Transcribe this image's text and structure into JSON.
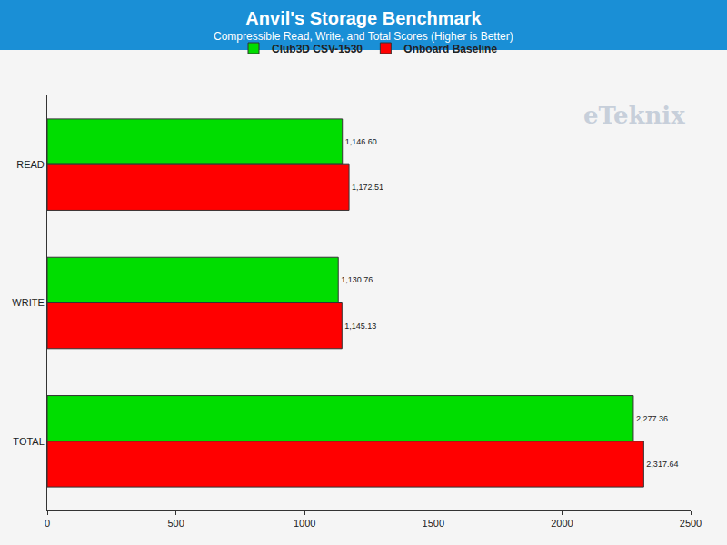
{
  "chart_data": {
    "type": "bar",
    "orientation": "horizontal",
    "title": "Anvil's Storage Benchmark",
    "subtitle": "Compressible Read, Write, and Total Scores (Higher is Better)",
    "categories": [
      "READ",
      "WRITE",
      "TOTAL"
    ],
    "series": [
      {
        "name": "Club3D CSV-1530",
        "color": "#00dd00",
        "values": [
          1146.6,
          1130.76,
          2277.36
        ],
        "value_labels": [
          "1,146.60",
          "1,130.76",
          "2,277.36"
        ]
      },
      {
        "name": "Onboard Baseline",
        "color": "#ff0000",
        "values": [
          1172.51,
          1145.13,
          2317.64
        ],
        "value_labels": [
          "1,172.51",
          "1,145.13",
          "2,317.64"
        ]
      }
    ],
    "xlim": [
      0,
      2500
    ],
    "xticks": [
      0,
      500,
      1000,
      1500,
      2000,
      2500
    ],
    "grid": false,
    "legend": "top",
    "data_labels": true,
    "annotations": [
      {
        "text": "eTeknix"
      }
    ]
  }
}
